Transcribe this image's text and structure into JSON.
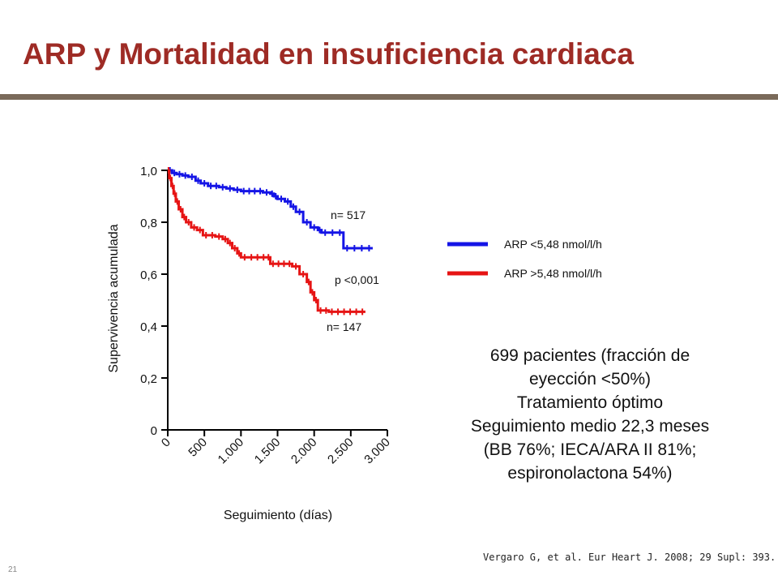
{
  "slide": {
    "title": "ARP y Mortalidad en insuficiencia cardiaca",
    "slide_number": "21",
    "citation": "Vergaro G, et al. Eur Heart J. 2008; 29 Supl: 393.",
    "info_lines": [
      "699 pacientes (fracción de",
      "eyección <50%)",
      "Tratamiento óptimo",
      "Seguimiento medio 22,3 meses",
      "(BB 76%; IECA/ARA II 81%;",
      "espironolactona 54%)"
    ],
    "colors": {
      "title": "#9e2b25",
      "rule": "#7a6a5a"
    }
  },
  "chart_data": {
    "type": "line",
    "step": true,
    "xlabel": "Seguimiento (días)",
    "ylabel": "Supervivencia acumulada",
    "xlim": [
      0,
      3000
    ],
    "ylim": [
      0,
      1
    ],
    "xticks": [
      0,
      500,
      1000,
      1500,
      2000,
      2500,
      3000
    ],
    "xtick_labels": [
      "0",
      "500",
      "1.000",
      "1.500",
      "2.000",
      "2.500",
      "3.000"
    ],
    "yticks": [
      0,
      0.2,
      0.4,
      0.6,
      0.8,
      1.0
    ],
    "ytick_labels": [
      "0",
      "0,2",
      "0,4",
      "0,6",
      "0,8",
      "1,0"
    ],
    "grid": false,
    "legend_position": "right",
    "annotations": {
      "n_blue": "n= 517",
      "n_red": "n= 147",
      "p_value": "p <0,001"
    },
    "series": [
      {
        "name": "ARP <5,48 nmol/l/h",
        "color": "#1414e6",
        "points": [
          [
            0,
            1.0
          ],
          [
            60,
            0.99
          ],
          [
            120,
            0.985
          ],
          [
            200,
            0.98
          ],
          [
            280,
            0.975
          ],
          [
            380,
            0.96
          ],
          [
            450,
            0.95
          ],
          [
            550,
            0.94
          ],
          [
            700,
            0.935
          ],
          [
            800,
            0.93
          ],
          [
            900,
            0.925
          ],
          [
            1000,
            0.92
          ],
          [
            1150,
            0.92
          ],
          [
            1300,
            0.915
          ],
          [
            1400,
            0.91
          ],
          [
            1450,
            0.9
          ],
          [
            1500,
            0.89
          ],
          [
            1600,
            0.88
          ],
          [
            1680,
            0.86
          ],
          [
            1750,
            0.84
          ],
          [
            1850,
            0.8
          ],
          [
            1950,
            0.78
          ],
          [
            2050,
            0.77
          ],
          [
            2100,
            0.76
          ],
          [
            2300,
            0.76
          ],
          [
            2400,
            0.7
          ],
          [
            2800,
            0.7
          ]
        ]
      },
      {
        "name": "ARP >5,48 nmol/l/h",
        "color": "#e61414",
        "points": [
          [
            0,
            1.0
          ],
          [
            20,
            0.97
          ],
          [
            50,
            0.94
          ],
          [
            80,
            0.91
          ],
          [
            110,
            0.88
          ],
          [
            150,
            0.85
          ],
          [
            200,
            0.82
          ],
          [
            250,
            0.8
          ],
          [
            320,
            0.78
          ],
          [
            400,
            0.77
          ],
          [
            480,
            0.75
          ],
          [
            650,
            0.745
          ],
          [
            750,
            0.735
          ],
          [
            820,
            0.72
          ],
          [
            880,
            0.7
          ],
          [
            950,
            0.68
          ],
          [
            1000,
            0.665
          ],
          [
            1100,
            0.665
          ],
          [
            1350,
            0.665
          ],
          [
            1400,
            0.64
          ],
          [
            1550,
            0.64
          ],
          [
            1700,
            0.63
          ],
          [
            1800,
            0.6
          ],
          [
            1900,
            0.57
          ],
          [
            1950,
            0.53
          ],
          [
            2000,
            0.5
          ],
          [
            2050,
            0.46
          ],
          [
            2200,
            0.455
          ],
          [
            2700,
            0.455
          ]
        ]
      }
    ]
  }
}
